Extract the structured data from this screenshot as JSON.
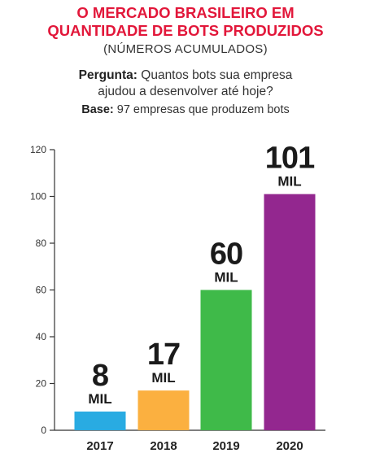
{
  "header": {
    "title_line1": "O MERCADO BRASILEIRO EM",
    "title_line2": "QUANTIDADE DE BOTS PRODUZIDOS",
    "subtitle": "(NÚMEROS ACUMULADOS)",
    "question_label": "Pergunta:",
    "question_text_1": "Quantos bots sua empresa",
    "question_text_2": "ajudou a desenvolver até hoje?",
    "base_label": "Base:",
    "base_text": "97 empresas que produzem bots"
  },
  "chart_data": {
    "type": "bar",
    "categories": [
      "2017",
      "2018",
      "2019",
      "2020"
    ],
    "values": [
      8,
      17,
      60,
      101
    ],
    "value_labels": [
      "8",
      "17",
      "60",
      "101"
    ],
    "unit_label": "MIL",
    "ylim": [
      0,
      120
    ],
    "yticks": [
      0,
      20,
      40,
      60,
      80,
      100,
      120
    ],
    "colors": [
      "#29abe2",
      "#fbb040",
      "#3fba49",
      "#93278f"
    ],
    "grid": false
  }
}
